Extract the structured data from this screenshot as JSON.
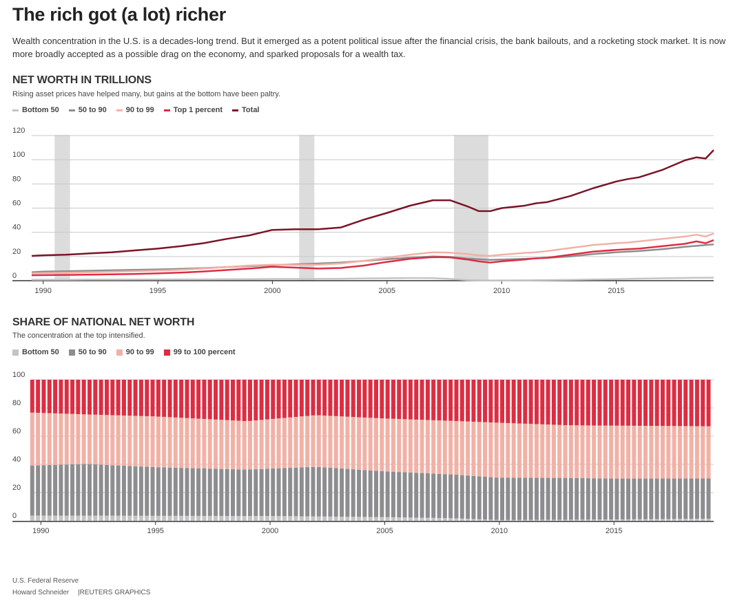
{
  "header": {
    "title": "The rich got (a lot) richer",
    "description": "Wealth concentration in the U.S. is a decades-long trend. But it emerged as a potent political issue after the financial crisis, the bank bailouts, and a rocketing stock market. It is now more broadly accepted as a possible drag on the economy, and sparked proposals for a wealth tax."
  },
  "colors": {
    "bottom50": "#c4c4c4",
    "p50to90": "#8d8d8f",
    "p90to99": "#f2b1a6",
    "top1": "#dc2d42",
    "total": "#7a1426",
    "recession": "#dcdcdc",
    "grid": "#c8c8c8"
  },
  "chart_data": [
    {
      "type": "line",
      "title": "NET WORTH IN TRILLIONS",
      "subtitle": "Rising asset prices have helped many, but gains at the bottom have been paltry.",
      "legend": [
        "Bottom 50",
        "50 to 90",
        "90 to 99",
        "Top 1 percent",
        "Total"
      ],
      "xlim": [
        1989.5,
        2019.25
      ],
      "ylim": [
        0,
        120
      ],
      "yticks": [
        0,
        20,
        40,
        60,
        80,
        100,
        120
      ],
      "xticks": [
        1990,
        1995,
        2000,
        2005,
        2010,
        2015
      ],
      "recessions": [
        [
          1990.5,
          1991.17
        ],
        [
          2001.17,
          2001.83
        ],
        [
          2007.92,
          2009.42
        ]
      ],
      "x": [
        1989.5,
        1990,
        1991,
        1992,
        1993,
        1994,
        1995,
        1996,
        1997,
        1998,
        1999,
        2000,
        2001,
        2002,
        2003,
        2004,
        2005,
        2006,
        2007,
        2007.75,
        2008.5,
        2009,
        2009.5,
        2010,
        2011,
        2011.5,
        2012,
        2013,
        2014,
        2015,
        2015.5,
        2016,
        2017,
        2018,
        2018.5,
        2018.9,
        2019.25
      ],
      "series": [
        {
          "name": "Bottom 50",
          "values": [
            0.8,
            0.8,
            0.8,
            0.9,
            0.9,
            1.0,
            1.0,
            1.1,
            1.1,
            1.2,
            1.3,
            1.4,
            1.4,
            1.5,
            1.6,
            1.8,
            2.0,
            2.2,
            2.1,
            1.5,
            0.5,
            0.3,
            0.2,
            0.2,
            0.3,
            0.4,
            0.5,
            0.7,
            1.0,
            1.3,
            1.5,
            1.7,
            2.0,
            2.3,
            2.4,
            2.4,
            2.5
          ]
        },
        {
          "name": "50 to 90",
          "values": [
            7,
            7.5,
            7.8,
            8.2,
            8.6,
            9.0,
            9.3,
            9.8,
            10.4,
            11.2,
            12.0,
            12.8,
            13.5,
            14.2,
            15.0,
            16.3,
            17.8,
            19.0,
            20.0,
            19.6,
            18.3,
            17.8,
            17.2,
            17.5,
            18.0,
            18.5,
            18.8,
            20.0,
            22.0,
            23.5,
            24.0,
            24.5,
            26.0,
            28.0,
            28.8,
            29.5,
            30.0
          ]
        },
        {
          "name": "90 to 99",
          "values": [
            6,
            6.3,
            6.6,
            7.0,
            7.4,
            7.8,
            8.3,
            9.0,
            10.0,
            11.2,
            12.5,
            13.2,
            13.0,
            13.2,
            14.2,
            16.5,
            19.0,
            21.5,
            23.5,
            23.2,
            22.0,
            21.0,
            20.5,
            21.5,
            23.0,
            23.5,
            24.5,
            27.0,
            29.5,
            31.0,
            31.5,
            32.5,
            34.5,
            36.5,
            38.0,
            36.5,
            39.0
          ]
        },
        {
          "name": "Top 1 percent",
          "values": [
            4.5,
            4.6,
            4.8,
            5.0,
            5.3,
            5.6,
            6.0,
            6.7,
            7.6,
            8.8,
            10.0,
            11.5,
            10.8,
            10.0,
            10.5,
            12.5,
            15.5,
            18.0,
            19.5,
            19.3,
            17.5,
            16.0,
            15.0,
            16.0,
            17.5,
            18.5,
            19.0,
            21.5,
            24.0,
            25.5,
            26.0,
            26.5,
            28.5,
            30.5,
            32.5,
            31.0,
            33.5
          ]
        },
        {
          "name": "Total",
          "values": [
            20.5,
            21,
            21.5,
            22.5,
            23.5,
            25,
            26.5,
            28.5,
            31,
            34.5,
            37.5,
            42,
            42.5,
            42.5,
            44,
            50.5,
            56,
            62,
            66.5,
            66.5,
            61.5,
            57.5,
            57.5,
            60,
            62,
            64,
            65,
            70,
            76.5,
            82,
            84,
            85.5,
            91.5,
            99.5,
            102,
            101,
            108
          ]
        }
      ]
    },
    {
      "type": "bar",
      "stacked": true,
      "title": "SHARE OF NATIONAL NET WORTH",
      "subtitle": "The concentration at the top intensified.",
      "legend": [
        "Bottom 50",
        "50 to 90",
        "90 to 99",
        "99 to 100 percent"
      ],
      "xlim": [
        1989.6,
        2019.35
      ],
      "ylim": [
        0,
        100
      ],
      "yticks": [
        0,
        20,
        40,
        60,
        80,
        100
      ],
      "xticks": [
        1990,
        1995,
        2000,
        2005,
        2010,
        2015
      ],
      "x_start": 1989.625,
      "x_step": 0.25,
      "bar_count": 119,
      "series": [
        {
          "name": "Bottom 50",
          "anchors_x": [
            1989.6,
            1995,
            2000,
            2005,
            2008,
            2010,
            2015,
            2019.35
          ],
          "anchors_y": [
            3.7,
            3.5,
            3.4,
            2.6,
            1.8,
            0.5,
            0.9,
            1.5
          ]
        },
        {
          "name": "50 to 90",
          "anchors_x": [
            1989.6,
            1992,
            1995,
            1999,
            2002,
            2005,
            2008,
            2010,
            2015,
            2019.35
          ],
          "anchors_y": [
            35.5,
            36.5,
            34.5,
            33.0,
            35.0,
            32.5,
            31.0,
            30.0,
            29.0,
            28.5
          ]
        },
        {
          "name": "90 to 99",
          "anchors_x": [
            1989.6,
            1992,
            1995,
            1999,
            2002,
            2005,
            2008,
            2010,
            2013,
            2015,
            2019.35
          ],
          "anchors_y": [
            37.5,
            35.0,
            36.0,
            34.5,
            36.5,
            37.5,
            38.0,
            39.0,
            37.0,
            37.5,
            37.0
          ]
        },
        {
          "name": "99 to 100 percent",
          "anchors_x": [
            1989.6,
            1992,
            1995,
            1999,
            2002,
            2005,
            2008,
            2010,
            2013,
            2015,
            2019.35
          ],
          "anchors_y": [
            23.3,
            24.5,
            26.0,
            29.5,
            25.0,
            27.5,
            29.2,
            30.5,
            32.0,
            32.5,
            33.0
          ]
        }
      ]
    }
  ],
  "footer": {
    "source": "U.S. Federal Reserve",
    "author": "Howard Schneider",
    "credit": "REUTERS GRAPHICS"
  }
}
